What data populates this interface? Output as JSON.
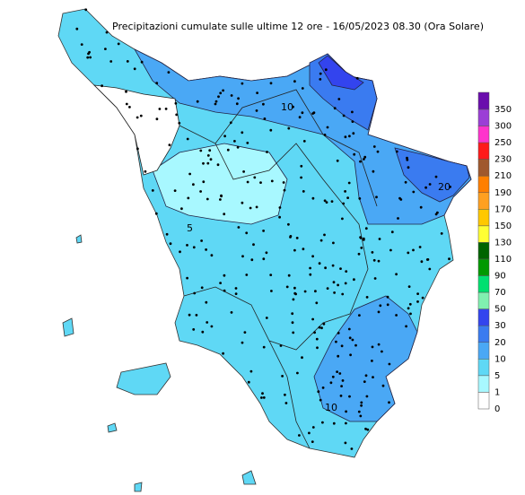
{
  "title": "Precipitazioni cumulate sulle ultime 12 ore - 16/05/2023 08.30 (Ora Solare)",
  "legend": {
    "labels": [
      350,
      300,
      250,
      230,
      210,
      190,
      170,
      150,
      130,
      110,
      90,
      70,
      50,
      30,
      20,
      10,
      5,
      1,
      0
    ],
    "colors": [
      "#6a0dad",
      "#9b3fd6",
      "#ff33cc",
      "#ff1a1a",
      "#a0582d",
      "#ff7f00",
      "#ffa020",
      "#ffc800",
      "#ffff33",
      "#006400",
      "#009900",
      "#00e070",
      "#80f0b0",
      "#3344ee",
      "#3a7bf0",
      "#4aa8f5",
      "#5fd8f5",
      "#a8f8ff",
      "#ffffff"
    ]
  },
  "contour_labels": [
    "10",
    "5",
    "20",
    "10"
  ]
}
